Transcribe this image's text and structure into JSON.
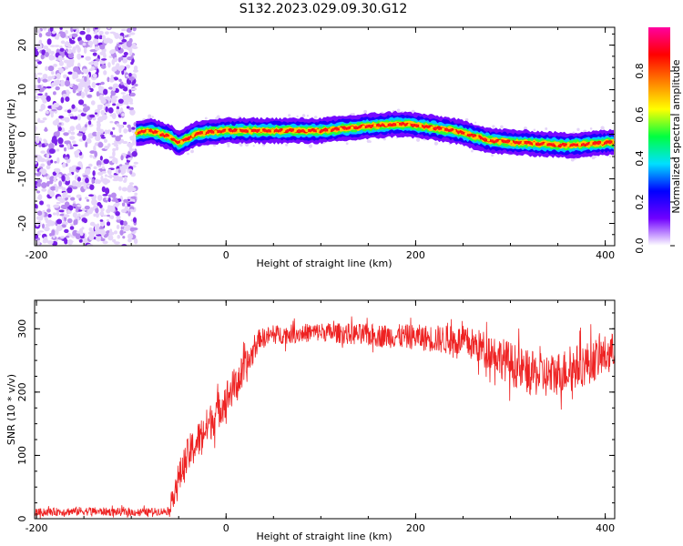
{
  "title": "S132.2023.029.09.30.G12",
  "colorbar": {
    "label": "Normalized spectral amplitude",
    "ticks": [
      "0.0",
      "0.2",
      "0.4",
      "0.6",
      "0.8"
    ],
    "tick_values": [
      0.0,
      0.2,
      0.4,
      0.6,
      0.8
    ],
    "range": [
      0,
      1
    ],
    "colors": [
      "#ffffff",
      "#7000ff",
      "#0000ff",
      "#00e0ff",
      "#00ff40",
      "#ffff00",
      "#ff8000",
      "#ff0000",
      "#ff00a0"
    ]
  },
  "chart_data": [
    {
      "type": "heatmap",
      "xlabel": "Height of straight line (km)",
      "ylabel": "Frequency (Hz)",
      "xlim": [
        -202,
        410
      ],
      "ylim": [
        -25,
        24
      ],
      "xticks": [
        -200,
        0,
        200,
        400
      ],
      "xtick_labels": [
        "-200",
        "0",
        "200",
        "400"
      ],
      "yticks": [
        -20,
        -10,
        0,
        10,
        20
      ],
      "ytick_labels": [
        "-20",
        "-10",
        "0",
        "10",
        "20"
      ],
      "noise_region": [
        -202,
        -95
      ],
      "ridge": {
        "name": "",
        "x": [
          -95,
          -80,
          -60,
          -50,
          -30,
          0,
          50,
          100,
          150,
          180,
          200,
          240,
          280,
          320,
          360,
          410
        ],
        "y": [
          0.3,
          0.8,
          -0.5,
          -2,
          0.2,
          0.8,
          0.8,
          0.8,
          1.8,
          2.3,
          2.0,
          0.8,
          -1.5,
          -2.0,
          -2.5,
          -1.8
        ]
      }
    },
    {
      "type": "line",
      "xlabel": "Height of straight line (km)",
      "ylabel": "SNR (10 * v/v)",
      "xlim": [
        -202,
        410
      ],
      "ylim": [
        0,
        345
      ],
      "xticks": [
        -200,
        0,
        200,
        400
      ],
      "xtick_labels": [
        "-200",
        "0",
        "200",
        "400"
      ],
      "yticks": [
        0,
        100,
        200,
        300
      ],
      "ytick_labels": [
        "0",
        "100",
        "200",
        "300"
      ],
      "color": "#ee2222",
      "series": [
        {
          "name": "",
          "x": [
            -202,
            -150,
            -100,
            -60,
            -55,
            -40,
            -20,
            0,
            20,
            35,
            50,
            100,
            150,
            200,
            250,
            280,
            300,
            320,
            340,
            360,
            380,
            410
          ],
          "y": [
            10,
            12,
            10,
            12,
            45,
            100,
            145,
            190,
            235,
            285,
            290,
            295,
            290,
            287,
            280,
            265,
            245,
            230,
            225,
            235,
            245,
            265
          ],
          "noise_amplitude": [
            6,
            7,
            6,
            6,
            25,
            30,
            30,
            30,
            28,
            15,
            15,
            15,
            18,
            20,
            25,
            30,
            35,
            35,
            35,
            35,
            35,
            30
          ]
        }
      ]
    }
  ]
}
